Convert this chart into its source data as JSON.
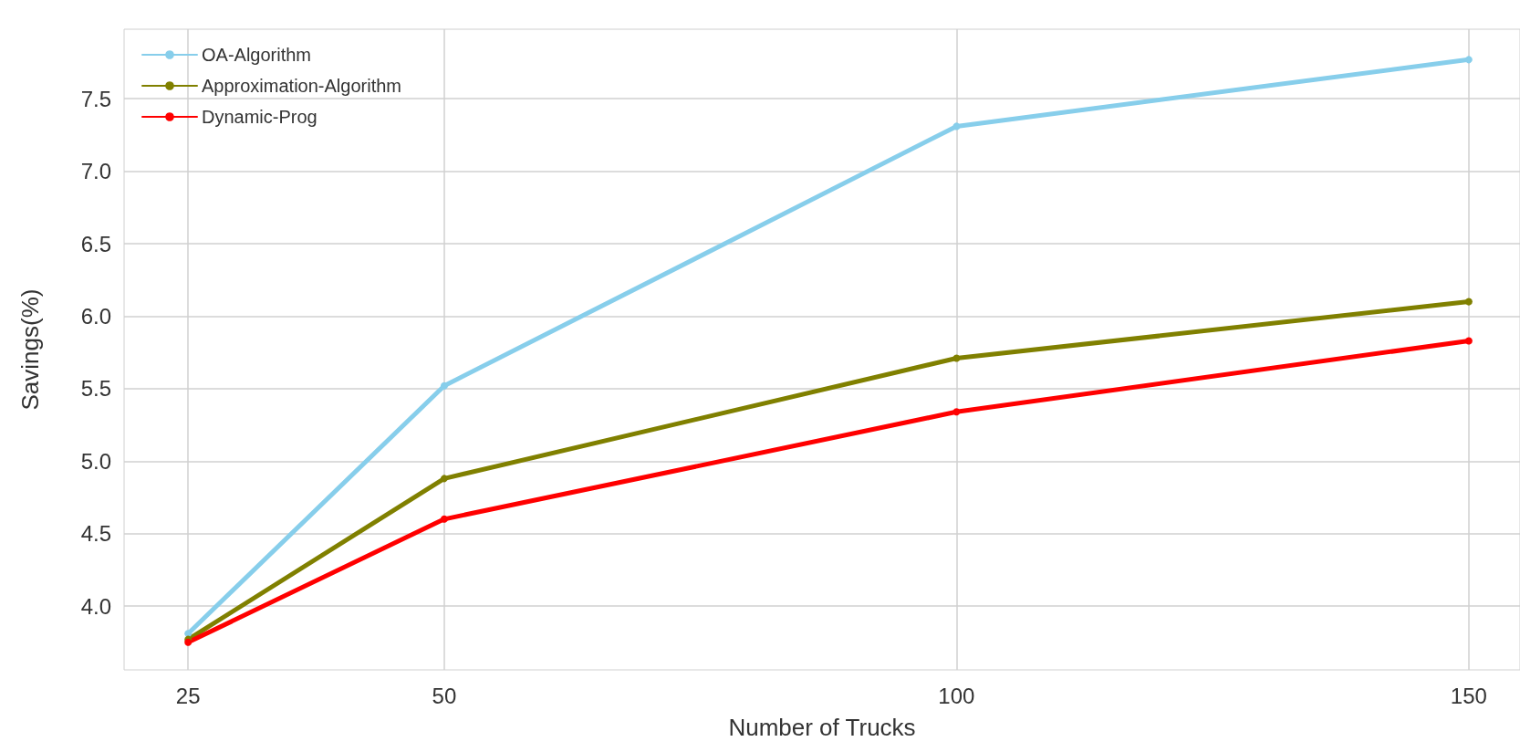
{
  "chart_data": {
    "type": "line",
    "xlabel": "Number of Trucks",
    "ylabel": "Savings(%)",
    "x": [
      25,
      50,
      100,
      150
    ],
    "series": [
      {
        "name": "OA-Algorithm",
        "color": "#87ceeb",
        "values": [
          3.81,
          5.52,
          7.31,
          7.77
        ]
      },
      {
        "name": "Approximation-Algorithm",
        "color": "#808000",
        "values": [
          3.77,
          4.88,
          5.71,
          6.1
        ]
      },
      {
        "name": "Dynamic-Prog",
        "color": "#ff0000",
        "values": [
          3.75,
          4.6,
          5.34,
          5.83
        ]
      }
    ],
    "xlim": [
      18.75,
      155
    ],
    "xticks": [
      25,
      50,
      100,
      150
    ],
    "ylim": [
      3.56,
      7.98
    ],
    "yticks": [
      {
        "value": 4,
        "label": "4.0"
      },
      4.5,
      {
        "value": 5,
        "label": "5.0"
      },
      5.5,
      {
        "value": 6,
        "label": "6.0"
      },
      6.5,
      {
        "value": 7,
        "label": "7.0"
      },
      7.5
    ],
    "grid": true,
    "legend": "top left",
    "marker": "circle",
    "line_style": "solid"
  }
}
